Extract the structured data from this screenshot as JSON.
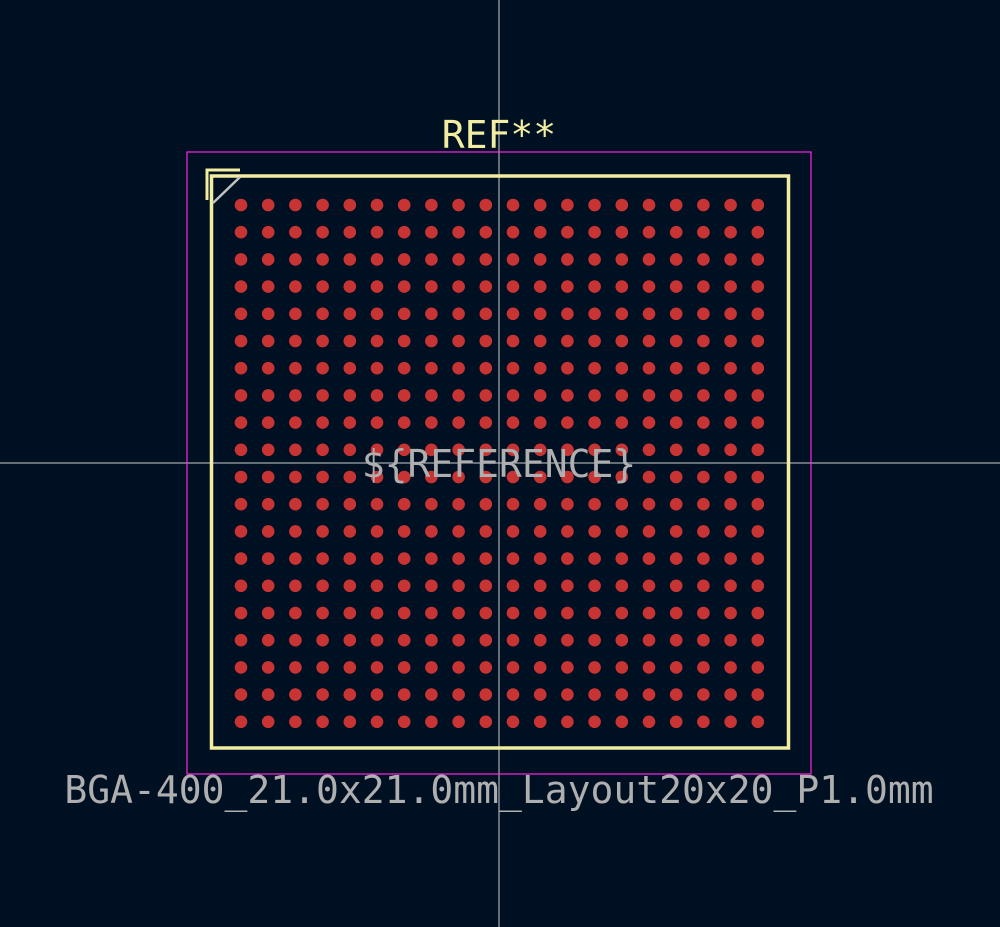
{
  "footprint": {
    "reference": "REF**",
    "fab_reference": "${REFERENCE}",
    "value": "BGA-400_21.0x21.0mm_Layout20x20_P1.0mm",
    "pad_rows": 20,
    "pad_columns": 20
  },
  "colors": {
    "background": "#001023",
    "silkscreen": "#F2EDA1",
    "courtyard": "#FF26E2",
    "fabrication": "#AFAFAF",
    "pads": "#C83434",
    "crosshair": "#CCCCCC",
    "pin1_marker": "#C2C2C2"
  }
}
